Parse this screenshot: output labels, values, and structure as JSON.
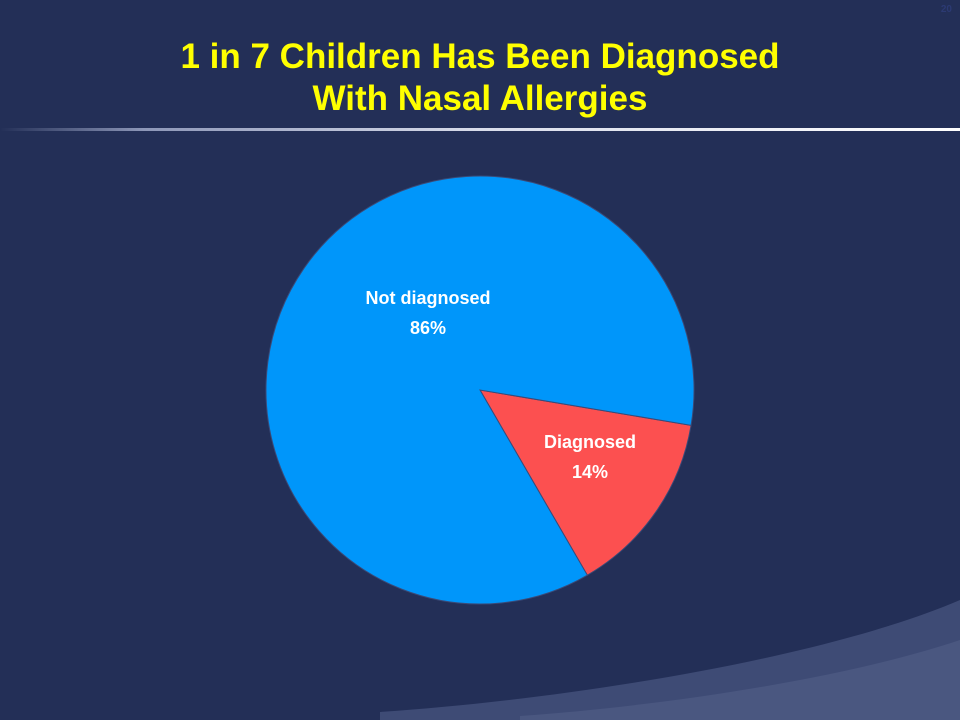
{
  "slide": {
    "title_line1": "1 in 7 Children Has Been Diagnosed",
    "title_line2": "With Nasal Allergies",
    "page_number": "20"
  },
  "colors": {
    "background": "#232f57",
    "title": "#ffff00",
    "not_diagnosed": "#0096fa",
    "diagnosed": "#fc5050",
    "label": "#ffffff"
  },
  "chart_data": {
    "type": "pie",
    "title": "1 in 7 Children Has Been Diagnosed With Nasal Allergies",
    "legend": "none",
    "slices": [
      {
        "label": "Not diagnosed",
        "value": 86,
        "value_label": "86%",
        "color": "#0096fa"
      },
      {
        "label": "Diagnosed",
        "value": 14,
        "value_label": "14%",
        "color": "#fc5050"
      }
    ]
  }
}
